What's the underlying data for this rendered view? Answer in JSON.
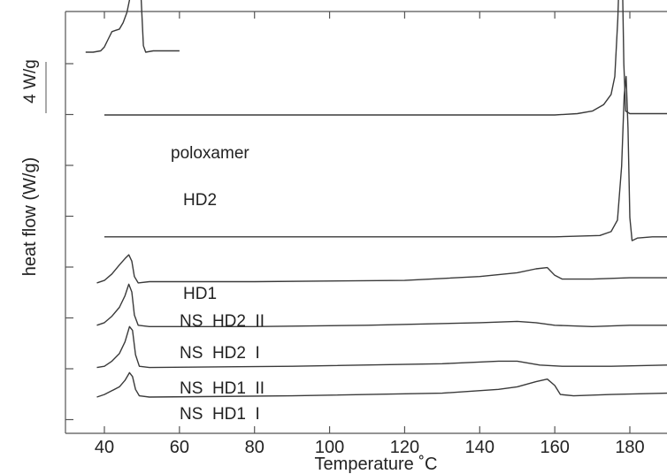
{
  "chart_data": {
    "type": "line",
    "title": "",
    "xlabel": "Temperature ˚C",
    "ylabel": "heat flow (W/g)",
    "scale_bar_label": "4 W/g",
    "xlim": [
      30,
      190
    ],
    "xticks": [
      40,
      60,
      80,
      100,
      120,
      140,
      160,
      180
    ],
    "y_units": "W/g (curves vertically offset; scale bar = 4 W/g)",
    "grid": false,
    "legend": "labels placed next to each curve",
    "series": [
      {
        "name": "poloxamer",
        "baseline_offset": 29.0,
        "points": [
          [
            35,
            28.9
          ],
          [
            37,
            28.9
          ],
          [
            39,
            29.0
          ],
          [
            40,
            29.3
          ],
          [
            41,
            29.9
          ],
          [
            42,
            30.5
          ],
          [
            43,
            30.6
          ],
          [
            44,
            30.7
          ],
          [
            45,
            31.2
          ],
          [
            46,
            32.0
          ],
          [
            47,
            33.4
          ],
          [
            48,
            36.0
          ],
          [
            48.6,
            38.4
          ],
          [
            49,
            39.1
          ],
          [
            49.4,
            38.0
          ],
          [
            49.8,
            33.0
          ],
          [
            50.4,
            29.4
          ],
          [
            51,
            28.9
          ],
          [
            53,
            29.0
          ],
          [
            56,
            29.0
          ],
          [
            60,
            29.0
          ]
        ]
      },
      {
        "name": "HD2",
        "baseline_offset": 24.0,
        "points": [
          [
            40,
            24.0
          ],
          [
            60,
            24.0
          ],
          [
            100,
            24.0
          ],
          [
            140,
            24.0
          ],
          [
            160,
            24.0
          ],
          [
            166,
            24.1
          ],
          [
            170,
            24.3
          ],
          [
            173,
            24.8
          ],
          [
            175,
            25.6
          ],
          [
            176,
            27.0
          ],
          [
            176.8,
            31.5
          ],
          [
            177.3,
            36.0
          ],
          [
            177.7,
            38.3
          ],
          [
            178.0,
            35.0
          ],
          [
            178.4,
            28.0
          ],
          [
            178.9,
            24.3
          ],
          [
            180,
            24.1
          ],
          [
            185,
            24.1
          ],
          [
            190,
            24.1
          ]
        ]
      },
      {
        "name": "HD1",
        "baseline_offset": 14.5,
        "points": [
          [
            40,
            14.5
          ],
          [
            80,
            14.5
          ],
          [
            120,
            14.5
          ],
          [
            160,
            14.5
          ],
          [
            172,
            14.6
          ],
          [
            175,
            14.9
          ],
          [
            176.7,
            15.8
          ],
          [
            177.8,
            20.0
          ],
          [
            178.5,
            25.5
          ],
          [
            179.0,
            27.0
          ],
          [
            179.5,
            23.0
          ],
          [
            180.0,
            16.0
          ],
          [
            180.6,
            14.2
          ],
          [
            182,
            14.4
          ],
          [
            186,
            14.5
          ],
          [
            190,
            14.5
          ]
        ]
      },
      {
        "name": "NS  HD2  II",
        "baseline_offset": 11.0,
        "points": [
          [
            38,
            10.9
          ],
          [
            40,
            11.1
          ],
          [
            42,
            11.6
          ],
          [
            44,
            12.3
          ],
          [
            45.5,
            12.8
          ],
          [
            46.5,
            13.1
          ],
          [
            47.3,
            12.6
          ],
          [
            48,
            11.4
          ],
          [
            49,
            10.9
          ],
          [
            52,
            11.0
          ],
          [
            80,
            11.0
          ],
          [
            120,
            11.1
          ],
          [
            140,
            11.4
          ],
          [
            150,
            11.7
          ],
          [
            155,
            12.0
          ],
          [
            158,
            12.1
          ],
          [
            160,
            11.5
          ],
          [
            162,
            11.2
          ],
          [
            170,
            11.2
          ],
          [
            180,
            11.3
          ],
          [
            190,
            11.3
          ]
        ]
      },
      {
        "name": "NS  HD2  I",
        "baseline_offset": 7.5,
        "points": [
          [
            38,
            7.6
          ],
          [
            40,
            7.8
          ],
          [
            42,
            8.3
          ],
          [
            44,
            9.0
          ],
          [
            45.5,
            9.9
          ],
          [
            46.5,
            10.8
          ],
          [
            47.3,
            10.2
          ],
          [
            48,
            8.4
          ],
          [
            49,
            7.6
          ],
          [
            52,
            7.5
          ],
          [
            80,
            7.5
          ],
          [
            110,
            7.6
          ],
          [
            140,
            7.8
          ],
          [
            150,
            7.9
          ],
          [
            155,
            7.8
          ],
          [
            160,
            7.6
          ],
          [
            170,
            7.5
          ],
          [
            180,
            7.6
          ],
          [
            190,
            7.6
          ]
        ]
      },
      {
        "name": "NS  HD1  II",
        "baseline_offset": 4.3,
        "points": [
          [
            38,
            4.3
          ],
          [
            40,
            4.4
          ],
          [
            42,
            4.8
          ],
          [
            44,
            5.4
          ],
          [
            45.5,
            6.3
          ],
          [
            46.7,
            7.5
          ],
          [
            47.5,
            7.2
          ],
          [
            48.3,
            5.3
          ],
          [
            49.3,
            4.4
          ],
          [
            52,
            4.3
          ],
          [
            90,
            4.4
          ],
          [
            130,
            4.6
          ],
          [
            145,
            4.8
          ],
          [
            150,
            4.8
          ],
          [
            156,
            4.5
          ],
          [
            162,
            4.4
          ],
          [
            175,
            4.4
          ],
          [
            190,
            4.5
          ]
        ]
      },
      {
        "name": "NS  HD1  I",
        "baseline_offset": 2.0,
        "points": [
          [
            38,
            2.0
          ],
          [
            40,
            2.2
          ],
          [
            42,
            2.5
          ],
          [
            44,
            2.8
          ],
          [
            45.5,
            3.3
          ],
          [
            46.7,
            3.9
          ],
          [
            47.5,
            3.6
          ],
          [
            48.3,
            2.6
          ],
          [
            49.3,
            2.1
          ],
          [
            52,
            2.0
          ],
          [
            90,
            2.1
          ],
          [
            130,
            2.3
          ],
          [
            145,
            2.6
          ],
          [
            150,
            2.8
          ],
          [
            155,
            3.2
          ],
          [
            158,
            3.4
          ],
          [
            160,
            2.9
          ],
          [
            161.5,
            2.2
          ],
          [
            165,
            2.1
          ],
          [
            175,
            2.2
          ],
          [
            190,
            2.3
          ]
        ]
      }
    ],
    "curve_labels": [
      "poloxamer",
      "HD2",
      "HD1",
      "NS  HD2  II",
      "NS  HD2  I",
      "NS  HD1  II",
      "NS  HD1  I"
    ]
  }
}
